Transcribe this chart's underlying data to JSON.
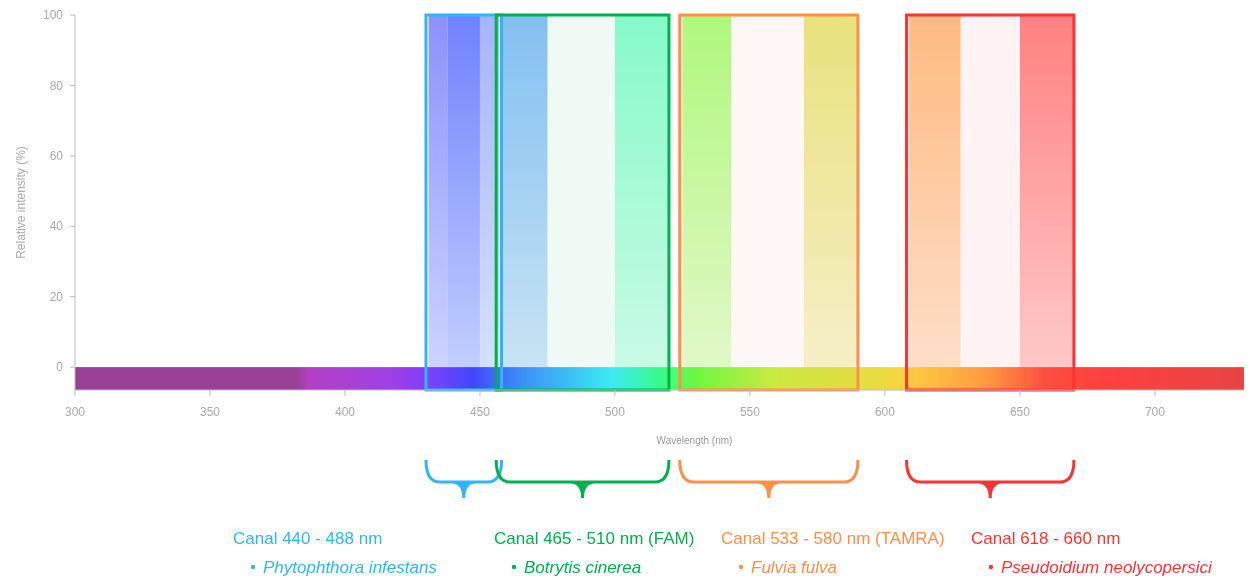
{
  "chart_data": {
    "type": "area",
    "xlabel": "Wavelength (nm)",
    "ylabel": "Relative intensity (%)",
    "xlim": [
      300,
      733
    ],
    "xticks": [
      300,
      350,
      400,
      450,
      500,
      550,
      600,
      650,
      700
    ],
    "ylim": [
      -6.5,
      100
    ],
    "yticks": [
      0,
      20,
      40,
      60,
      80,
      100
    ],
    "series": [
      {
        "color": "#8c88ff",
        "x": [
          431,
          438
        ],
        "values": [
          100,
          100
        ]
      },
      {
        "color": "#6b78ff",
        "x": [
          438,
          450
        ],
        "values": [
          100,
          100
        ]
      },
      {
        "color": "#a9b0ff",
        "x": [
          450,
          457
        ],
        "values": [
          100,
          100
        ]
      },
      {
        "color": "#86bdfb",
        "x": [
          458,
          475
        ],
        "values": [
          100,
          100
        ]
      },
      {
        "color": "#8affcf",
        "x": [
          500,
          520
        ],
        "values": [
          100,
          100
        ]
      },
      {
        "color": "#a6ff7a",
        "x": [
          525,
          543
        ],
        "values": [
          100,
          100
        ]
      },
      {
        "color": "#e6e67a",
        "x": [
          570,
          590
        ],
        "values": [
          100,
          100
        ]
      },
      {
        "color": "#ffc07f",
        "x": [
          609,
          628
        ],
        "values": [
          100,
          100
        ]
      },
      {
        "color": "#ff8080",
        "x": [
          650,
          670
        ],
        "values": [
          100,
          100
        ]
      }
    ],
    "bands": [
      {
        "axis": "x",
        "from": 430,
        "to": 458,
        "color": "#33b5f5"
      },
      {
        "axis": "x",
        "from": 456,
        "to": 520,
        "color": "#00b050"
      },
      {
        "axis": "x",
        "from": 524,
        "to": 590,
        "color": "#ff8f4a"
      },
      {
        "axis": "x",
        "from": 608,
        "to": 670,
        "color": "#ff3333"
      }
    ],
    "annotations": [
      "Canal 440 - 488 nm",
      "Phytophthora infestans",
      "Canal 465 - 510 nm (FAM)",
      "Botrytis cinerea",
      "Canal 533 - 580 nm (TAMRA)",
      "Fulvia fulva",
      "Canal 618 - 660 nm",
      "Pseudoidium neolycopersici"
    ]
  }
}
